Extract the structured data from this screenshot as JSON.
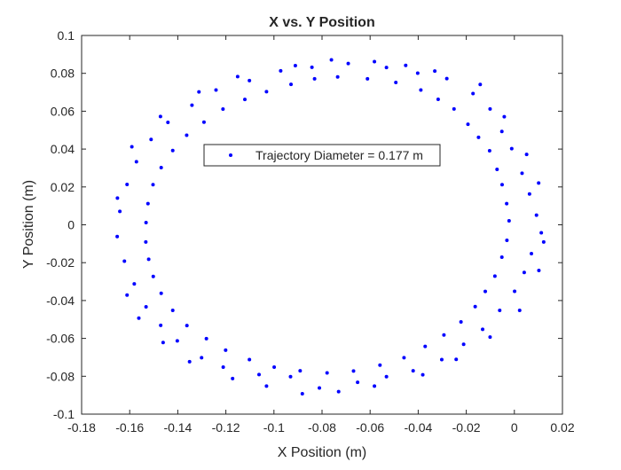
{
  "chart_data": {
    "type": "scatter",
    "title": "X vs. Y Position",
    "xlabel": "X Position (m)",
    "ylabel": "Y Position (m)",
    "xlim": [
      -0.18,
      0.02
    ],
    "ylim": [
      -0.1,
      0.1
    ],
    "x_ticks": [
      -0.18,
      -0.16,
      -0.14,
      -0.12,
      -0.1,
      -0.08,
      -0.06,
      -0.04,
      -0.02,
      0,
      0.02
    ],
    "x_tick_labels": [
      "-0.18",
      "-0.16",
      "-0.14",
      "-0.12",
      "-0.1",
      "-0.08",
      "-0.06",
      "-0.04",
      "-0.02",
      "0",
      "0.02"
    ],
    "y_ticks": [
      -0.1,
      -0.08,
      -0.06,
      -0.04,
      -0.02,
      0,
      0.02,
      0.04,
      0.06,
      0.08,
      0.1
    ],
    "y_tick_labels": [
      "-0.1",
      "-0.08",
      "-0.06",
      "-0.04",
      "-0.02",
      "0",
      "0.02",
      "0.04",
      "0.06",
      "0.08",
      "0.1"
    ],
    "grid": false,
    "legend": {
      "entries": [
        "Trajectory Diameter = 0.177 m"
      ],
      "placement": "upper-center"
    },
    "marker_color": "#0000ff",
    "series": [
      {
        "name": "Trajectory Diameter = 0.177 m",
        "points": [
          [
            -0.0735,
            0.0781
          ],
          [
            -0.0611,
            0.0771
          ],
          [
            -0.0493,
            0.0752
          ],
          [
            -0.0389,
            0.0712
          ],
          [
            -0.0317,
            0.0663
          ],
          [
            -0.0251,
            0.0612
          ],
          [
            -0.0193,
            0.0531
          ],
          [
            -0.0149,
            0.0462
          ],
          [
            -0.0103,
            0.0391
          ],
          [
            -0.0072,
            0.0293
          ],
          [
            -0.0051,
            0.0212
          ],
          [
            -0.0032,
            0.0112
          ],
          [
            -0.0022,
            0.0021
          ],
          [
            -0.0031,
            -0.0082
          ],
          [
            -0.0052,
            -0.0171
          ],
          [
            -0.0081,
            -0.0271
          ],
          [
            -0.0121,
            -0.0352
          ],
          [
            -0.0163,
            -0.0432
          ],
          [
            -0.0222,
            -0.0513
          ],
          [
            -0.0293,
            -0.0582
          ],
          [
            -0.0371,
            -0.0642
          ],
          [
            -0.0459,
            -0.0702
          ],
          [
            -0.0559,
            -0.0741
          ],
          [
            -0.0669,
            -0.0772
          ],
          [
            -0.0779,
            -0.0782
          ],
          [
            -0.0891,
            -0.0771
          ],
          [
            -0.0999,
            -0.0752
          ],
          [
            -0.1102,
            -0.0712
          ],
          [
            -0.1201,
            -0.0662
          ],
          [
            -0.1281,
            -0.0601
          ],
          [
            -0.1362,
            -0.0532
          ],
          [
            -0.1421,
            -0.0452
          ],
          [
            -0.1469,
            -0.0362
          ],
          [
            -0.1502,
            -0.0273
          ],
          [
            -0.1521,
            -0.0182
          ],
          [
            -0.1533,
            -0.0091
          ],
          [
            -0.1532,
            0.0012
          ],
          [
            -0.1524,
            0.0112
          ],
          [
            -0.1503,
            0.0212
          ],
          [
            -0.1469,
            0.0302
          ],
          [
            -0.1421,
            0.0392
          ],
          [
            -0.1363,
            0.0473
          ],
          [
            -0.1291,
            0.0542
          ],
          [
            -0.1212,
            0.0611
          ],
          [
            -0.1121,
            0.0662
          ],
          [
            -0.1031,
            0.0703
          ],
          [
            -0.0929,
            0.0742
          ],
          [
            -0.0831,
            0.0771
          ],
          [
            -0.0691,
            0.0852
          ],
          [
            -0.0532,
            0.0831
          ],
          [
            -0.0402,
            0.0801
          ],
          [
            -0.0281,
            0.0772
          ],
          [
            -0.0172,
            0.0693
          ],
          [
            -0.0101,
            0.0612
          ],
          [
            -0.0052,
            0.0493
          ],
          [
            -0.0011,
            0.0402
          ],
          [
            0.0032,
            0.0272
          ],
          [
            0.0063,
            0.0163
          ],
          [
            0.0092,
            0.0051
          ],
          [
            0.0112,
            -0.0042
          ],
          [
            0.0071,
            -0.0152
          ],
          [
            0.0041,
            -0.0252
          ],
          [
            0.0001,
            -0.0351
          ],
          [
            -0.0061,
            -0.0452
          ],
          [
            -0.0132,
            -0.0552
          ],
          [
            -0.0211,
            -0.0631
          ],
          [
            -0.0302,
            -0.0712
          ],
          [
            -0.0421,
            -0.0771
          ],
          [
            -0.0532,
            -0.0802
          ],
          [
            -0.0652,
            -0.0832
          ],
          [
            -0.0811,
            -0.0862
          ],
          [
            -0.0931,
            -0.0802
          ],
          [
            -0.1062,
            -0.0791
          ],
          [
            -0.1211,
            -0.0752
          ],
          [
            -0.1301,
            -0.0702
          ],
          [
            -0.1402,
            -0.0613
          ],
          [
            -0.1471,
            -0.0531
          ],
          [
            -0.1532,
            -0.0433
          ],
          [
            -0.1581,
            -0.0312
          ],
          [
            -0.1622,
            -0.0192
          ],
          [
            -0.1652,
            -0.0062
          ],
          [
            -0.1641,
            0.0071
          ],
          [
            -0.1611,
            0.0213
          ],
          [
            -0.1572,
            0.0333
          ],
          [
            -0.1511,
            0.0451
          ],
          [
            -0.1441,
            0.0541
          ],
          [
            -0.1341,
            0.0632
          ],
          [
            -0.1241,
            0.0712
          ],
          [
            -0.1102,
            0.0762
          ],
          [
            -0.0972,
            0.0813
          ],
          [
            -0.0842,
            0.0832
          ],
          [
            -0.0761,
            0.0871
          ],
          [
            -0.0582,
            0.0862
          ],
          [
            -0.0452,
            0.0842
          ],
          [
            -0.0331,
            0.0812
          ],
          [
            -0.0142,
            0.0741
          ],
          [
            -0.0042,
            0.0571
          ],
          [
            0.0051,
            0.0372
          ],
          [
            0.0101,
            0.0221
          ],
          [
            0.0122,
            -0.0091
          ],
          [
            0.0102,
            -0.0241
          ],
          [
            0.0022,
            -0.0452
          ],
          [
            -0.0101,
            -0.0593
          ],
          [
            -0.0242,
            -0.0711
          ],
          [
            -0.0381,
            -0.0792
          ],
          [
            -0.0582,
            -0.0852
          ],
          [
            -0.0731,
            -0.0881
          ],
          [
            -0.0882,
            -0.0892
          ],
          [
            -0.1031,
            -0.0852
          ],
          [
            -0.1172,
            -0.0812
          ],
          [
            -0.1351,
            -0.0723
          ],
          [
            -0.1461,
            -0.0622
          ],
          [
            -0.1562,
            -0.0493
          ],
          [
            -0.1611,
            -0.0371
          ],
          [
            -0.1651,
            0.0141
          ],
          [
            -0.1591,
            0.0412
          ],
          [
            -0.1472,
            0.0572
          ],
          [
            -0.1312,
            0.0702
          ],
          [
            -0.1151,
            0.0783
          ],
          [
            -0.0911,
            0.0841
          ]
        ]
      }
    ]
  }
}
